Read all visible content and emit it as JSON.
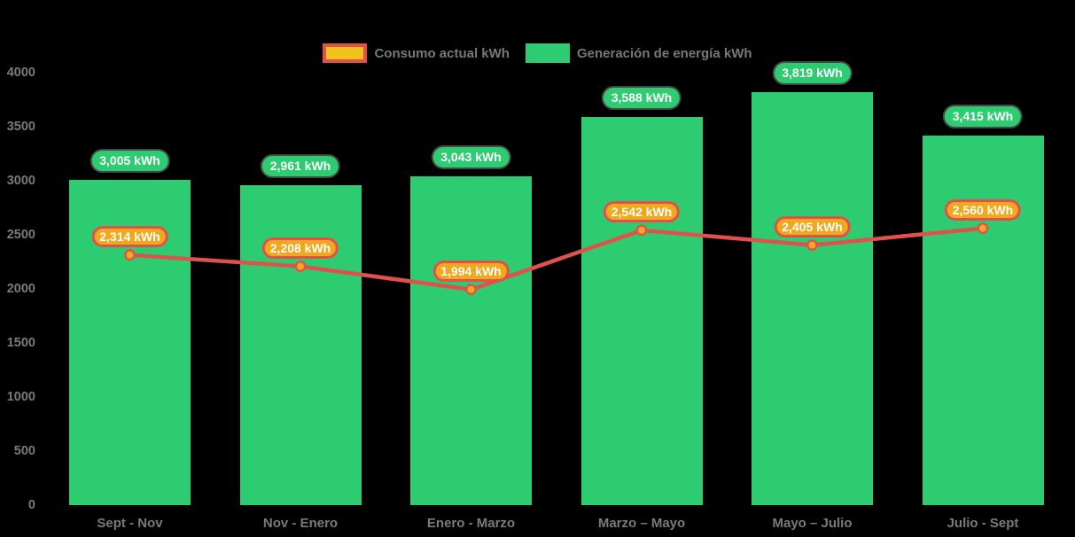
{
  "chart": {
    "background": "#000000",
    "legend": [
      {
        "label": "Consumo actual kWh",
        "swatch_fill": "#efc319",
        "swatch_border": "#e0514c"
      },
      {
        "label": "Generación de energía kWh",
        "swatch_fill": "#2ecc71",
        "swatch_border": "#2ecc71"
      }
    ]
  },
  "chart_data": {
    "type": "bar+line",
    "title": "",
    "xlabel": "",
    "ylabel": "",
    "categories": [
      "Sept - Nov",
      "Nov - Enero",
      "Enero - Marzo",
      "Marzo – Mayo",
      "Mayo – Julio",
      "Julio - Sept"
    ],
    "y_ticks": [
      0,
      500,
      1000,
      1500,
      2000,
      2500,
      3000,
      3500,
      4000
    ],
    "ylim": [
      0,
      4000
    ],
    "grid": false,
    "legend_position": "top-center",
    "series": [
      {
        "name": "Generación de energía kWh",
        "type": "bar",
        "color": "#2ecc71",
        "values": [
          3005,
          2961,
          3043,
          3588,
          3819,
          3415
        ],
        "labels": [
          "3,005 kWh",
          "2,961 kWh",
          "3,043 kWh",
          "3,588 kWh",
          "3,819 kWh",
          "3,415 kWh"
        ],
        "label_fill": "#2ecc71",
        "label_text_color": "#ffffff"
      },
      {
        "name": "Consumo actual kWh",
        "type": "line",
        "color": "#e0514c",
        "point_fill": "#f3a820",
        "values": [
          2314,
          2208,
          1994,
          2542,
          2405,
          2560
        ],
        "labels": [
          "2,314 kWh",
          "2,208 kWh",
          "1,994 kWh",
          "2,542 kWh",
          "2,405 kWh",
          "2,560 kWh"
        ],
        "label_fill": "#f2a81d",
        "label_border": "#e0514c",
        "label_text_color": "#ffffff"
      }
    ]
  }
}
